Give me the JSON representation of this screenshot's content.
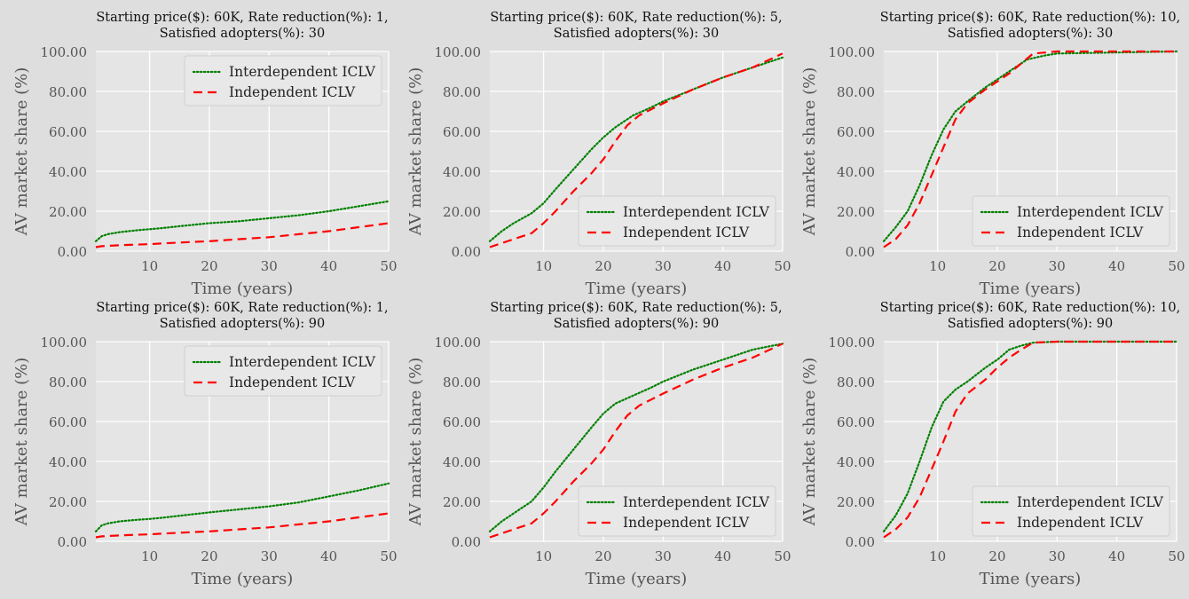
{
  "chart_data": [
    {
      "type": "line",
      "title": "Starting price($): 60K, Rate reduction(%): 1,\nSatisfied adopters(%): 30",
      "xlabel": "Time (years)",
      "ylabel": "AV market share (%)",
      "xlim": [
        1,
        50
      ],
      "ylim": [
        0,
        100
      ],
      "xticks": [
        10,
        20,
        30,
        40,
        50
      ],
      "yticks": [
        "0.00",
        "20.00",
        "40.00",
        "60.00",
        "80.00",
        "100.00"
      ],
      "grid": true,
      "legend": "top-center",
      "series": [
        {
          "name": "Interdependent ICLV",
          "color": "#008000",
          "style": "dotted",
          "x": [
            1,
            2,
            3,
            5,
            8,
            10,
            12,
            15,
            20,
            25,
            30,
            35,
            40,
            45,
            50
          ],
          "y": [
            5,
            7.5,
            8.5,
            9.5,
            10.5,
            11,
            11.5,
            12.5,
            14,
            15,
            16.5,
            18,
            20,
            22.5,
            25
          ]
        },
        {
          "name": "Independent ICLV",
          "color": "#ff0000",
          "style": "dashed",
          "x": [
            1,
            2,
            5,
            10,
            15,
            20,
            25,
            30,
            35,
            40,
            45,
            50
          ],
          "y": [
            2,
            2.5,
            3,
            3.5,
            4.3,
            5,
            6,
            7,
            8.5,
            10,
            12,
            14
          ]
        }
      ]
    },
    {
      "type": "line",
      "title": "Starting price($): 60K, Rate reduction(%): 5,\nSatisfied adopters(%): 30",
      "xlabel": "Time (years)",
      "ylabel": "AV market share (%)",
      "xlim": [
        1,
        50
      ],
      "ylim": [
        0,
        100
      ],
      "xticks": [
        10,
        20,
        30,
        40,
        50
      ],
      "yticks": [
        "0.00",
        "20.00",
        "40.00",
        "60.00",
        "80.00",
        "100.00"
      ],
      "grid": true,
      "legend": "lower-right",
      "series": [
        {
          "name": "Interdependent ICLV",
          "color": "#008000",
          "style": "dotted",
          "x": [
            1,
            3,
            5,
            8,
            10,
            12,
            15,
            18,
            20,
            22,
            25,
            28,
            30,
            35,
            40,
            45,
            50
          ],
          "y": [
            5,
            10,
            14,
            19,
            24,
            31,
            41,
            51,
            57,
            62,
            68,
            72,
            75,
            81,
            87,
            92,
            97
          ]
        },
        {
          "name": "Independent ICLV",
          "color": "#ff0000",
          "style": "dashed",
          "x": [
            1,
            3,
            5,
            8,
            10,
            12,
            15,
            18,
            20,
            22,
            24,
            26,
            28,
            30,
            35,
            40,
            45,
            50
          ],
          "y": [
            2,
            4,
            6,
            9,
            14,
            20,
            30,
            39,
            46,
            55,
            63,
            68,
            71,
            74,
            81,
            87,
            92,
            99
          ]
        }
      ]
    },
    {
      "type": "line",
      "title": "Starting price($): 60K, Rate reduction(%): 10,\nSatisfied adopters(%): 30",
      "xlabel": "Time (years)",
      "ylabel": "AV market share (%)",
      "xlim": [
        1,
        50
      ],
      "ylim": [
        0,
        100
      ],
      "xticks": [
        10,
        20,
        30,
        40,
        50
      ],
      "yticks": [
        "0.00",
        "20.00",
        "40.00",
        "60.00",
        "80.00",
        "100.00"
      ],
      "grid": true,
      "legend": "lower-right",
      "series": [
        {
          "name": "Interdependent ICLV",
          "color": "#008000",
          "style": "dotted",
          "x": [
            1,
            3,
            5,
            7,
            9,
            11,
            13,
            15,
            18,
            20,
            22,
            25,
            28,
            30,
            40,
            50
          ],
          "y": [
            5,
            12,
            20,
            33,
            48,
            61,
            70,
            75,
            82,
            86,
            90,
            96,
            98,
            99,
            99.5,
            100
          ]
        },
        {
          "name": "Independent ICLV",
          "color": "#ff0000",
          "style": "dashed",
          "x": [
            1,
            3,
            5,
            7,
            9,
            11,
            13,
            15,
            18,
            20,
            22,
            24,
            26,
            30,
            40,
            50
          ],
          "y": [
            2,
            6,
            13,
            24,
            38,
            52,
            66,
            74,
            81,
            85,
            89,
            94,
            99,
            100,
            100,
            100
          ]
        }
      ]
    },
    {
      "type": "line",
      "title": "Starting price($): 60K, Rate reduction(%): 1,\nSatisfied adopters(%): 90",
      "xlabel": "Time (years)",
      "ylabel": "AV market share (%)",
      "xlim": [
        1,
        50
      ],
      "ylim": [
        0,
        100
      ],
      "xticks": [
        10,
        20,
        30,
        40,
        50
      ],
      "yticks": [
        "0.00",
        "20.00",
        "40.00",
        "60.00",
        "80.00",
        "100.00"
      ],
      "grid": true,
      "legend": "top-center",
      "series": [
        {
          "name": "Interdependent ICLV",
          "color": "#008000",
          "style": "dotted",
          "x": [
            1,
            2,
            3,
            5,
            8,
            10,
            12,
            15,
            20,
            25,
            30,
            35,
            40,
            45,
            50
          ],
          "y": [
            5,
            8,
            9,
            10,
            10.8,
            11.2,
            11.8,
            12.8,
            14.5,
            16,
            17.5,
            19.5,
            22.5,
            25.5,
            29
          ]
        },
        {
          "name": "Independent ICLV",
          "color": "#ff0000",
          "style": "dashed",
          "x": [
            1,
            2,
            5,
            10,
            15,
            20,
            25,
            30,
            35,
            40,
            45,
            50
          ],
          "y": [
            2,
            2.5,
            3,
            3.5,
            4.3,
            5,
            6,
            7,
            8.5,
            10,
            12,
            14
          ]
        }
      ]
    },
    {
      "type": "line",
      "title": "Starting price($): 60K, Rate reduction(%): 5,\nSatisfied adopters(%): 90",
      "xlabel": "Time (years)",
      "ylabel": "AV market share (%)",
      "xlim": [
        1,
        50
      ],
      "ylim": [
        0,
        100
      ],
      "xticks": [
        10,
        20,
        30,
        40,
        50
      ],
      "yticks": [
        "0.00",
        "20.00",
        "40.00",
        "60.00",
        "80.00",
        "100.00"
      ],
      "grid": true,
      "legend": "lower-right",
      "series": [
        {
          "name": "Interdependent ICLV",
          "color": "#008000",
          "style": "dotted",
          "x": [
            1,
            3,
            5,
            8,
            10,
            12,
            15,
            18,
            20,
            22,
            25,
            28,
            30,
            35,
            40,
            45,
            50
          ],
          "y": [
            5,
            10,
            14,
            20,
            27,
            35,
            46,
            57,
            64,
            69,
            73,
            77,
            80,
            86,
            91,
            96,
            99
          ]
        },
        {
          "name": "Independent ICLV",
          "color": "#ff0000",
          "style": "dashed",
          "x": [
            1,
            3,
            5,
            8,
            10,
            12,
            15,
            18,
            20,
            22,
            24,
            26,
            28,
            30,
            35,
            40,
            45,
            50
          ],
          "y": [
            2,
            4,
            6,
            9,
            14,
            20,
            30,
            39,
            46,
            55,
            63,
            68,
            71,
            74,
            81,
            87,
            92,
            99
          ]
        }
      ]
    },
    {
      "type": "line",
      "title": "Starting price($): 60K, Rate reduction(%): 10,\nSatisfied adopters(%): 90",
      "xlabel": "Time (years)",
      "ylabel": "AV market share (%)",
      "xlim": [
        1,
        50
      ],
      "ylim": [
        0,
        100
      ],
      "xticks": [
        10,
        20,
        30,
        40,
        50
      ],
      "yticks": [
        "0.00",
        "20.00",
        "40.00",
        "60.00",
        "80.00",
        "100.00"
      ],
      "grid": true,
      "legend": "lower-right",
      "series": [
        {
          "name": "Interdependent ICLV",
          "color": "#008000",
          "style": "dotted",
          "x": [
            1,
            3,
            5,
            7,
            9,
            11,
            13,
            15,
            18,
            20,
            22,
            24,
            26,
            30,
            40,
            50
          ],
          "y": [
            5,
            13,
            24,
            40,
            57,
            70,
            76,
            80,
            87,
            91,
            96,
            98,
            99.5,
            100,
            100,
            100
          ]
        },
        {
          "name": "Independent ICLV",
          "color": "#ff0000",
          "style": "dashed",
          "x": [
            1,
            3,
            5,
            7,
            9,
            11,
            13,
            15,
            18,
            20,
            22,
            24,
            26,
            30,
            40,
            50
          ],
          "y": [
            2,
            6,
            12,
            22,
            36,
            50,
            65,
            74,
            81,
            87,
            92,
            96,
            99.5,
            100,
            100,
            100
          ]
        }
      ]
    }
  ]
}
